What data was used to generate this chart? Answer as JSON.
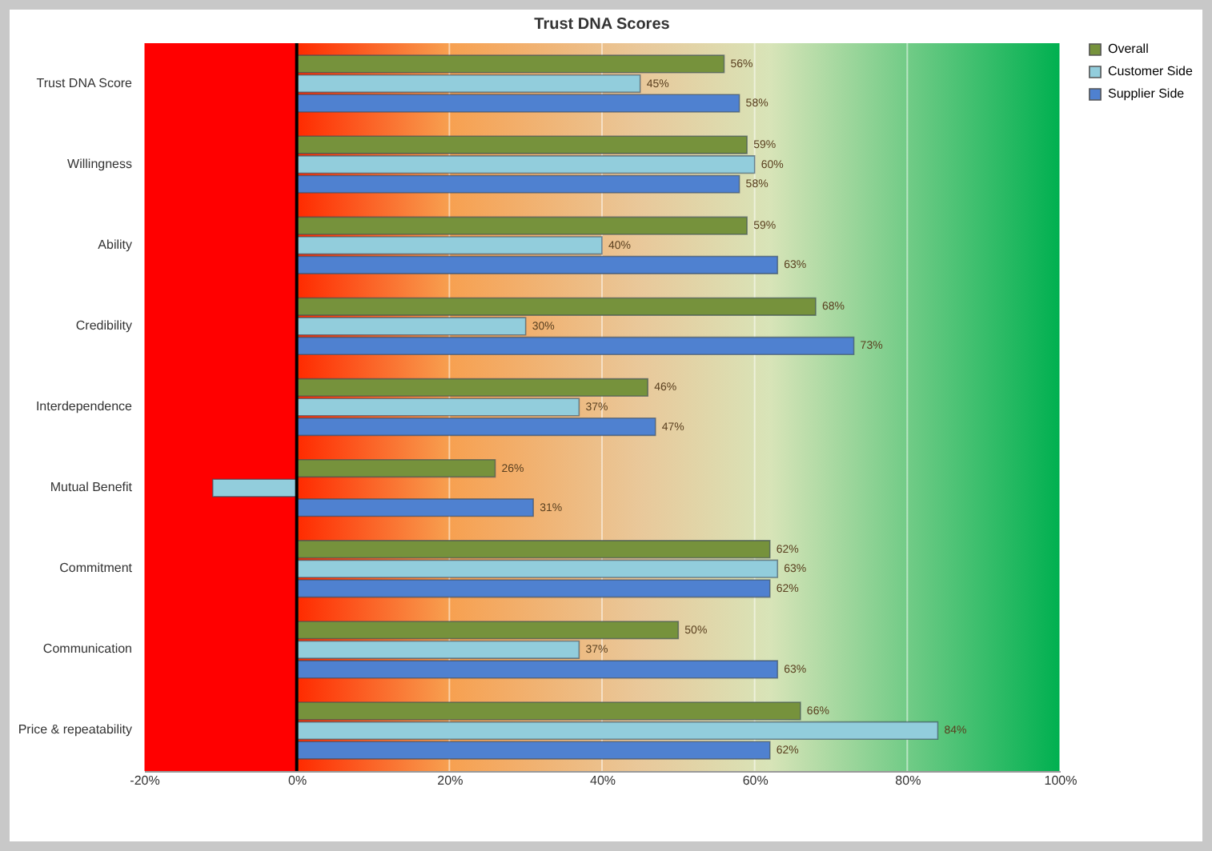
{
  "chart_data": {
    "type": "bar",
    "orientation": "horizontal",
    "title": "Trust DNA Scores",
    "categories": [
      "Trust DNA Score",
      "Willingness",
      "Ability",
      "Credibility",
      "Interdependence",
      "Mutual Benefit",
      "Commitment",
      "Communication",
      "Price & repeatability"
    ],
    "series": [
      {
        "name": "Overall",
        "color": "#76923c",
        "values": [
          56,
          59,
          59,
          68,
          46,
          26,
          62,
          50,
          66
        ],
        "value_labels": [
          "56%",
          "59%",
          "59%",
          "68%",
          "46%",
          "26%",
          "62%",
          "50%",
          "66%"
        ]
      },
      {
        "name": "Customer Side",
        "color": "#92cddc",
        "values": [
          45,
          60,
          40,
          30,
          37,
          -11,
          63,
          37,
          84
        ],
        "value_labels": [
          "45%",
          "60%",
          "40%",
          "30%",
          "37%",
          null,
          "63%",
          "37%",
          "84%"
        ]
      },
      {
        "name": "Supplier Side",
        "color": "#4f81d0",
        "values": [
          58,
          58,
          63,
          73,
          47,
          31,
          62,
          63,
          62
        ],
        "value_labels": [
          "58%",
          "58%",
          "63%",
          "73%",
          "47%",
          "31%",
          "62%",
          "63%",
          "62%"
        ]
      }
    ],
    "xlim": [
      -20,
      100
    ],
    "xticks": [
      {
        "value": -20,
        "label": "-20%"
      },
      {
        "value": 0,
        "label": "0%"
      },
      {
        "value": 20,
        "label": "20%"
      },
      {
        "value": 40,
        "label": "40%"
      },
      {
        "value": 60,
        "label": "60%"
      },
      {
        "value": 80,
        "label": "80%"
      },
      {
        "value": 100,
        "label": "100%"
      }
    ],
    "bands": [
      {
        "axis": "x",
        "from": -20,
        "to": 0,
        "color": "#ff0000"
      },
      {
        "axis": "x",
        "from": 0,
        "to": 100,
        "color": "#00b050"
      }
    ],
    "ref_lines": [
      {
        "axis": "x",
        "value": 0,
        "color": "#000000"
      }
    ],
    "grid": "x",
    "legend": "right"
  }
}
